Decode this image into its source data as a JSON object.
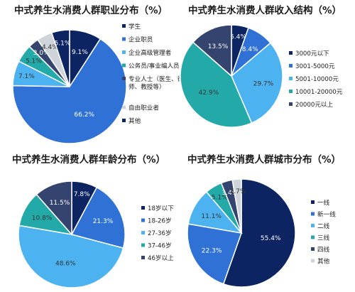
{
  "palette": {
    "navy": "#0c2461",
    "blue": "#2f71d4",
    "sky": "#4db3f0",
    "teal": "#24a9a9",
    "slate": "#35446e",
    "lightgray": "#cfd4da",
    "label_light": "#ffffff",
    "label_dark": "#333333"
  },
  "chart_data": [
    {
      "type": "pie",
      "title": "中式养生水消费人群职业分布（%）",
      "categories": [
        "学生",
        "企业职员",
        "企业高级管理者",
        "公务员/事业编人员",
        "专业人士（医生、律师、教授等）",
        "自由职业者",
        "其他"
      ],
      "values": [
        9.1,
        66.2,
        7.1,
        5.1,
        3.0,
        4.4,
        5.1
      ],
      "slice_labels": [
        "9.1%",
        "66.2%",
        "7.1%",
        "5.1%",
        "3.0%",
        "4.4%",
        "5.1%"
      ],
      "colors": [
        "#0c2461",
        "#2f71d4",
        "#4db3f0",
        "#24a9a9",
        "#35446e",
        "#cfd4da",
        "#0c2461"
      ],
      "legend_position": "right"
    },
    {
      "type": "pie",
      "title": "中式养生水消费人群收入结构（%）",
      "categories": [
        "3000元以下",
        "3001-5000元",
        "5001-10000元",
        "10001-20000元",
        "20000元以上"
      ],
      "values": [
        5.4,
        8.4,
        29.7,
        42.9,
        13.5
      ],
      "slice_labels": [
        "5.4%",
        "8.4%",
        "29.7%",
        "42.9%",
        "13.5%"
      ],
      "colors": [
        "#0c2461",
        "#2f71d4",
        "#4db3f0",
        "#24a9a9",
        "#35446e"
      ],
      "legend_position": "right"
    },
    {
      "type": "pie",
      "title": "中式养生水消费人群年龄分布（%）",
      "categories": [
        "18岁以下",
        "18-26岁",
        "27-36岁",
        "37-46岁",
        "46岁以上"
      ],
      "values": [
        7.8,
        21.3,
        48.6,
        10.8,
        11.5
      ],
      "slice_labels": [
        "7.8%",
        "21.3%",
        "48.6%",
        "10.8%",
        "11.5%"
      ],
      "colors": [
        "#0c2461",
        "#2f71d4",
        "#4db3f0",
        "#24a9a9",
        "#35446e"
      ],
      "legend_position": "right"
    },
    {
      "type": "pie",
      "title": "中式养生水消费人群城市分布（%）",
      "categories": [
        "一线",
        "新一线",
        "二线",
        "三线",
        "四线",
        "其他"
      ],
      "values": [
        55.4,
        22.3,
        11.1,
        5.1,
        3.4,
        2.7
      ],
      "slice_labels": [
        "55.4%",
        "22.3%",
        "11.1%",
        "5.1%",
        "3.4%",
        "2.7%"
      ],
      "colors": [
        "#0c2461",
        "#2f71d4",
        "#4db3f0",
        "#24a9a9",
        "#35446e",
        "#cfd4da"
      ],
      "legend_position": "right"
    }
  ]
}
